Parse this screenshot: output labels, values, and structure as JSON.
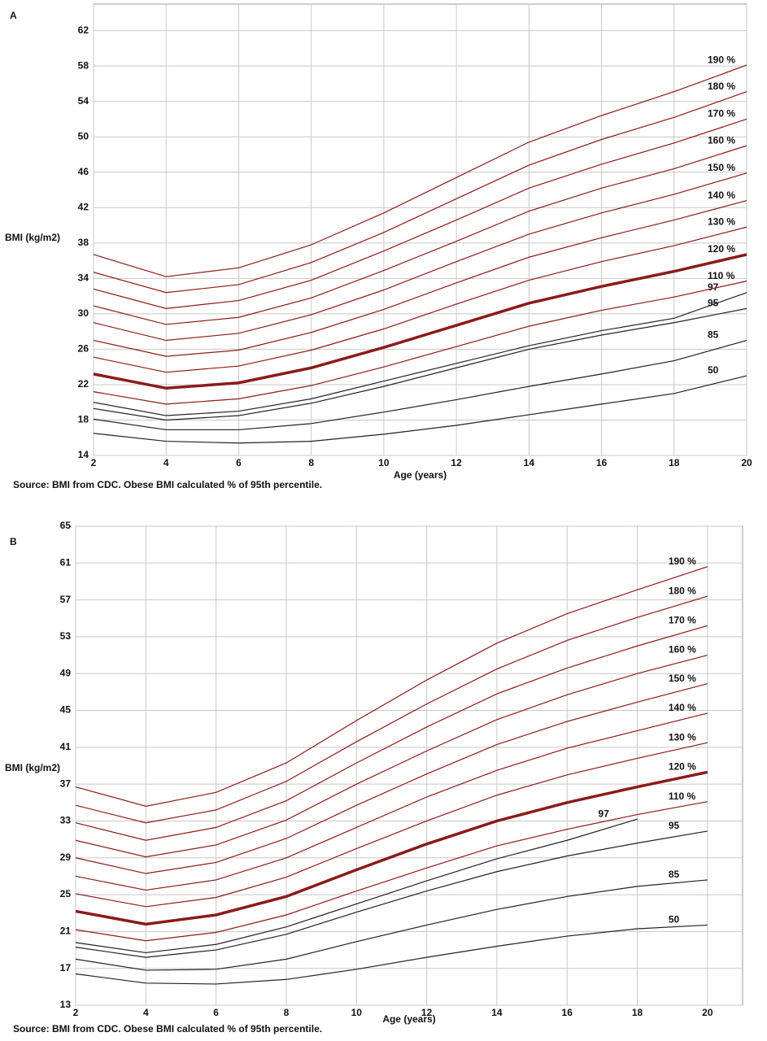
{
  "chart_data": [
    {
      "type": "line",
      "panel": "A",
      "xlabel": "Age (years)",
      "ylabel": "BMI (kg/m2)",
      "source": "Source: BMI from CDC. Obese BMI calculated % of 95th percentile.",
      "x": [
        2,
        4,
        6,
        8,
        10,
        12,
        14,
        16,
        18,
        20
      ],
      "xlim": [
        2,
        20
      ],
      "xticks": [
        2,
        4,
        6,
        8,
        10,
        12,
        14,
        16,
        18,
        20
      ],
      "ylim": [
        14,
        65
      ],
      "yticks": [
        14,
        18,
        22,
        26,
        30,
        34,
        38,
        42,
        46,
        50,
        54,
        58,
        62
      ],
      "grid": true,
      "series": [
        {
          "name": "50",
          "color": "#222222",
          "values": [
            16.5,
            15.6,
            15.4,
            15.6,
            16.4,
            17.4,
            18.6,
            19.8,
            21.0,
            23.0
          ]
        },
        {
          "name": "85",
          "color": "#222222",
          "values": [
            18.1,
            16.9,
            16.9,
            17.6,
            18.9,
            20.3,
            21.8,
            23.2,
            24.7,
            27.0
          ]
        },
        {
          "name": "95",
          "color": "#222222",
          "values": [
            19.3,
            18.0,
            18.5,
            19.9,
            21.8,
            23.9,
            26.0,
            27.6,
            29.0,
            30.6
          ]
        },
        {
          "name": "97",
          "color": "#222222",
          "values": [
            20.0,
            18.5,
            19.0,
            20.4,
            22.4,
            24.4,
            26.4,
            28.1,
            29.5,
            32.4
          ]
        },
        {
          "name": "110 %",
          "color": "#8b1a1a",
          "values": [
            21.2,
            19.8,
            20.4,
            21.9,
            24.0,
            26.3,
            28.6,
            30.4,
            31.9,
            33.7
          ]
        },
        {
          "name": "120 %",
          "color": "#8b1a1a",
          "values": [
            23.2,
            21.6,
            22.2,
            23.9,
            26.2,
            28.7,
            31.2,
            33.1,
            34.8,
            36.7
          ]
        },
        {
          "name": "130 %",
          "color": "#8b1a1a",
          "values": [
            25.1,
            23.4,
            24.1,
            25.9,
            28.3,
            31.1,
            33.8,
            35.9,
            37.7,
            39.8
          ]
        },
        {
          "name": "140 %",
          "color": "#8b1a1a",
          "values": [
            27.0,
            25.2,
            25.9,
            27.9,
            30.5,
            33.5,
            36.4,
            38.6,
            40.6,
            42.8
          ]
        },
        {
          "name": "150 %",
          "color": "#8b1a1a",
          "values": [
            29.0,
            27.0,
            27.8,
            29.9,
            32.7,
            35.9,
            39.0,
            41.4,
            43.5,
            45.9
          ]
        },
        {
          "name": "160 %",
          "color": "#8b1a1a",
          "values": [
            30.9,
            28.8,
            29.6,
            31.8,
            34.9,
            38.2,
            41.6,
            44.2,
            46.4,
            49.0
          ]
        },
        {
          "name": "170 %",
          "color": "#8b1a1a",
          "values": [
            32.8,
            30.6,
            31.5,
            33.8,
            37.1,
            40.6,
            44.2,
            46.9,
            49.3,
            52.0
          ]
        },
        {
          "name": "180 %",
          "color": "#8b1a1a",
          "values": [
            34.7,
            32.4,
            33.3,
            35.8,
            39.2,
            43.0,
            46.8,
            49.7,
            52.2,
            55.1
          ]
        },
        {
          "name": "190 %",
          "color": "#8b1a1a",
          "values": [
            36.7,
            34.2,
            35.2,
            37.8,
            41.4,
            45.4,
            49.4,
            52.4,
            55.1,
            58.1
          ]
        }
      ]
    },
    {
      "type": "line",
      "panel": "B",
      "xlabel": "Age (years)",
      "ylabel": "BMI (kg/m2)",
      "source": "Source: BMI from CDC. Obese BMI calculated % of 95th percentile.",
      "x": [
        2,
        4,
        6,
        8,
        10,
        12,
        14,
        16,
        18,
        20
      ],
      "xlim": [
        2,
        21
      ],
      "xticks": [
        2,
        4,
        6,
        8,
        10,
        12,
        14,
        16,
        18,
        20
      ],
      "ylim": [
        13,
        65
      ],
      "yticks": [
        13,
        17,
        21,
        25,
        29,
        33,
        37,
        41,
        45,
        49,
        53,
        57,
        61,
        65
      ],
      "grid": true,
      "series": [
        {
          "name": "50",
          "color": "#222222",
          "values": [
            16.4,
            15.4,
            15.3,
            15.8,
            16.9,
            18.2,
            19.4,
            20.5,
            21.3,
            21.7
          ]
        },
        {
          "name": "85",
          "color": "#222222",
          "values": [
            18.0,
            16.8,
            16.9,
            18.0,
            19.9,
            21.7,
            23.4,
            24.8,
            25.9,
            26.6
          ]
        },
        {
          "name": "95",
          "color": "#222222",
          "values": [
            19.3,
            18.2,
            19.0,
            20.7,
            23.1,
            25.4,
            27.5,
            29.2,
            30.6,
            31.9
          ]
        },
        {
          "name": "97",
          "color": "#222222",
          "values": [
            19.8,
            18.7,
            19.6,
            21.5,
            24.0,
            26.5,
            28.9,
            30.9,
            33.2,
            null
          ]
        },
        {
          "name": "110 %",
          "color": "#8b1a1a",
          "values": [
            21.2,
            20.0,
            20.9,
            22.8,
            25.4,
            27.9,
            30.3,
            32.1,
            33.7,
            35.1
          ]
        },
        {
          "name": "120 %",
          "color": "#8b1a1a",
          "values": [
            23.2,
            21.8,
            22.8,
            24.8,
            27.7,
            30.5,
            33.0,
            35.0,
            36.7,
            38.3
          ]
        },
        {
          "name": "130 %",
          "color": "#8b1a1a",
          "values": [
            25.1,
            23.7,
            24.7,
            26.9,
            30.0,
            33.0,
            35.8,
            38.0,
            39.8,
            41.5
          ]
        },
        {
          "name": "140 %",
          "color": "#8b1a1a",
          "values": [
            27.0,
            25.5,
            26.6,
            29.0,
            32.3,
            35.6,
            38.5,
            40.9,
            42.8,
            44.7
          ]
        },
        {
          "name": "150 %",
          "color": "#8b1a1a",
          "values": [
            29.0,
            27.3,
            28.5,
            31.1,
            34.7,
            38.1,
            41.3,
            43.8,
            45.9,
            47.9
          ]
        },
        {
          "name": "160 %",
          "color": "#8b1a1a",
          "values": [
            30.9,
            29.1,
            30.4,
            33.1,
            37.0,
            40.6,
            44.0,
            46.7,
            49.0,
            51.0
          ]
        },
        {
          "name": "170 %",
          "color": "#8b1a1a",
          "values": [
            32.8,
            30.9,
            32.3,
            35.2,
            39.3,
            43.2,
            46.8,
            49.6,
            52.0,
            54.2
          ]
        },
        {
          "name": "180 %",
          "color": "#8b1a1a",
          "values": [
            34.7,
            32.8,
            34.2,
            37.3,
            41.6,
            45.7,
            49.5,
            52.6,
            55.1,
            57.4
          ]
        },
        {
          "name": "190 %",
          "color": "#8b1a1a",
          "values": [
            36.7,
            34.6,
            36.1,
            39.3,
            43.9,
            48.3,
            52.3,
            55.5,
            58.1,
            60.6
          ]
        }
      ]
    }
  ]
}
